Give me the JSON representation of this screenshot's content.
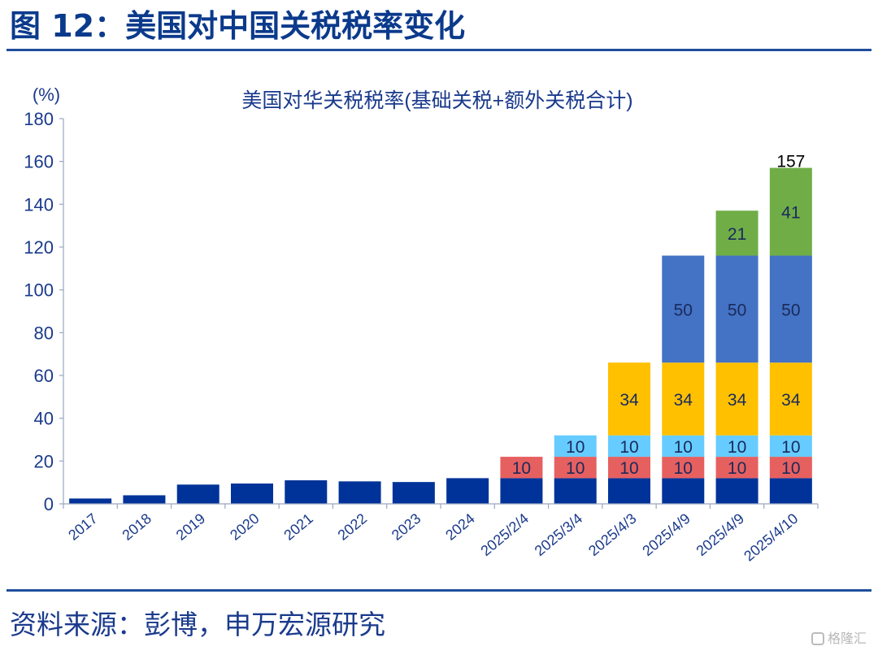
{
  "figure": {
    "title": "图 12：美国对中国关税税率变化",
    "source": "资料来源：彭博，申万宏源研究",
    "watermark": "格隆汇"
  },
  "colors": {
    "title": "#0b3a8c",
    "axis_text": "#1a3a8c",
    "base": "#003399",
    "extra_10_a": "#e66060",
    "extra_10_b": "#66ccff",
    "extra_34": "#ffc000",
    "extra_50": "#4472c4",
    "extra_top": "#70ad47"
  },
  "chart_data": {
    "type": "bar",
    "stacked": true,
    "title": "美国对华关税税率(基础关税+额外关税合计)",
    "ylabel": "(%)",
    "ylim": [
      0,
      180
    ],
    "yticks": [
      "0",
      "20",
      "40",
      "60",
      "80",
      "100",
      "120",
      "140",
      "160",
      "180"
    ],
    "grid": false,
    "legend": "none",
    "categories": [
      "2017",
      "2018",
      "2019",
      "2020",
      "2021",
      "2022",
      "2023",
      "2024",
      "2025/2/4",
      "2025/3/4",
      "2025/4/3",
      "2025/4/9",
      "2025/4/9",
      "2025/4/10"
    ],
    "series": [
      {
        "color": "#003399",
        "values": [
          2.5,
          4,
          9,
          9.5,
          11,
          10.5,
          10.2,
          12,
          12,
          12,
          12,
          12,
          12,
          12
        ],
        "labels": [
          "",
          "",
          "",
          "",
          "",
          "",
          "",
          "",
          "",
          "",
          "",
          "",
          "",
          ""
        ],
        "label_color": "#ffffff"
      },
      {
        "color": "#e66060",
        "values": [
          0,
          0,
          0,
          0,
          0,
          0,
          0,
          0,
          10,
          10,
          10,
          10,
          10,
          10
        ],
        "labels": [
          "",
          "",
          "",
          "",
          "",
          "",
          "",
          "",
          "10",
          "10",
          "10",
          "10",
          "10",
          "10"
        ],
        "label_color": "#1a2a5c"
      },
      {
        "color": "#66ccff",
        "values": [
          0,
          0,
          0,
          0,
          0,
          0,
          0,
          0,
          0,
          10,
          10,
          10,
          10,
          10
        ],
        "labels": [
          "",
          "",
          "",
          "",
          "",
          "",
          "",
          "",
          "",
          "10",
          "10",
          "10",
          "10",
          "10"
        ],
        "label_color": "#1a2a5c"
      },
      {
        "color": "#ffc000",
        "values": [
          0,
          0,
          0,
          0,
          0,
          0,
          0,
          0,
          0,
          0,
          34,
          34,
          34,
          34
        ],
        "labels": [
          "",
          "",
          "",
          "",
          "",
          "",
          "",
          "",
          "",
          "",
          "34",
          "34",
          "34",
          "34"
        ],
        "label_color": "#1a2a5c"
      },
      {
        "color": "#4472c4",
        "values": [
          0,
          0,
          0,
          0,
          0,
          0,
          0,
          0,
          0,
          0,
          0,
          50,
          50,
          50
        ],
        "labels": [
          "",
          "",
          "",
          "",
          "",
          "",
          "",
          "",
          "",
          "",
          "",
          "50",
          "50",
          "50"
        ],
        "label_color": "#1a2a5c"
      },
      {
        "color": "#70ad47",
        "values": [
          0,
          0,
          0,
          0,
          0,
          0,
          0,
          0,
          0,
          0,
          0,
          0,
          21,
          41
        ],
        "labels": [
          "",
          "",
          "",
          "",
          "",
          "",
          "",
          "",
          "",
          "",
          "",
          "",
          "21",
          "41"
        ],
        "label_color": "#1a2a5c"
      }
    ],
    "annotations": [
      {
        "category_index": 13,
        "text": "157",
        "value": 157
      }
    ]
  }
}
